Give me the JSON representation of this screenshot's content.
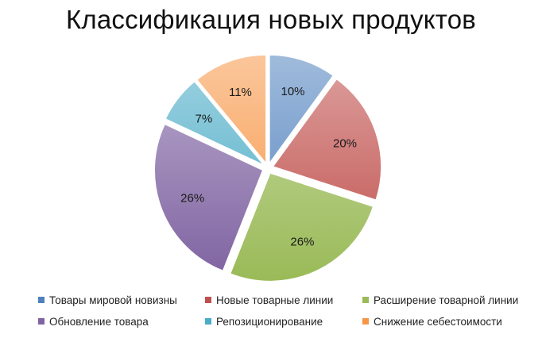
{
  "chart_data": {
    "type": "pie",
    "title": "Классификация новых продуктов",
    "slices": [
      {
        "name": "Товары мировой новизны",
        "value": 10,
        "label": "10%",
        "color": "#4f81bd"
      },
      {
        "name": "Новые товарные линии",
        "value": 20,
        "label": "20%",
        "color": "#c0504d"
      },
      {
        "name": "Расширение товарной линии",
        "value": 26,
        "label": "26%",
        "color": "#9bbb59"
      },
      {
        "name": "Обновление товара",
        "value": 26,
        "label": "26%",
        "color": "#8064a2"
      },
      {
        "name": "Репозиционирование",
        "value": 7,
        "label": "7%",
        "color": "#4bacc6"
      },
      {
        "name": "Снижение себестоимости",
        "value": 11,
        "label": "11%",
        "color": "#f79646"
      }
    ],
    "legend_position": "bottom",
    "exploded": true
  }
}
